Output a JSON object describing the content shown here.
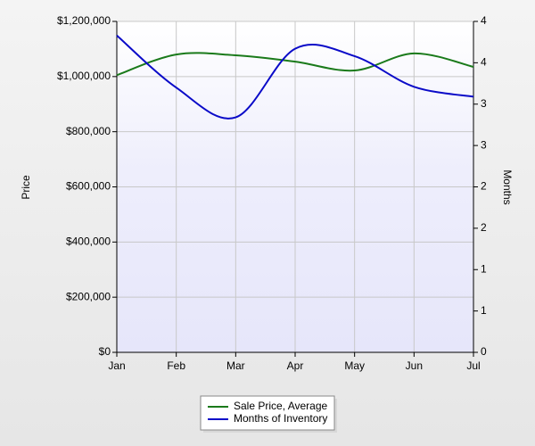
{
  "chart_data": {
    "type": "line",
    "y_label": "Price",
    "y2_label": "Months",
    "categories": [
      "Jan",
      "Feb",
      "Mar",
      "Apr",
      "May",
      "Jun",
      "Jul"
    ],
    "series": [
      {
        "name": "Sale Price, Average",
        "color": "#1a7a1a",
        "values": [
          1005000,
          1080000,
          1077000,
          1054000,
          1022000,
          1084000,
          1035000
        ]
      },
      {
        "name": "Months of Inventory",
        "color": "#0a0ac8",
        "axis": "y2",
        "values": [
          3.83,
          3.2,
          2.84,
          3.67,
          3.58,
          3.21,
          3.09
        ]
      }
    ],
    "ylim": [
      0,
      1200000
    ],
    "yticks": [
      {
        "value": 0,
        "label": "$0"
      },
      {
        "value": 200000,
        "label": "$200,000"
      },
      {
        "value": 400000,
        "label": "$400,000"
      },
      {
        "value": 600000,
        "label": "$600,000"
      },
      {
        "value": 800000,
        "label": "$800,000"
      },
      {
        "value": 1000000,
        "label": "$1,000,000"
      },
      {
        "value": 1200000,
        "label": "$1,200,000"
      }
    ],
    "y2lim": [
      0,
      4
    ],
    "y2ticks": [
      0,
      {
        "value": 0.5,
        "label": "1"
      },
      1,
      {
        "value": 1.5,
        "label": "2"
      },
      2,
      {
        "value": 2.5,
        "label": "3"
      },
      3,
      {
        "value": 3.5,
        "label": "4"
      },
      4
    ],
    "grid": true,
    "legend": "bottom"
  }
}
